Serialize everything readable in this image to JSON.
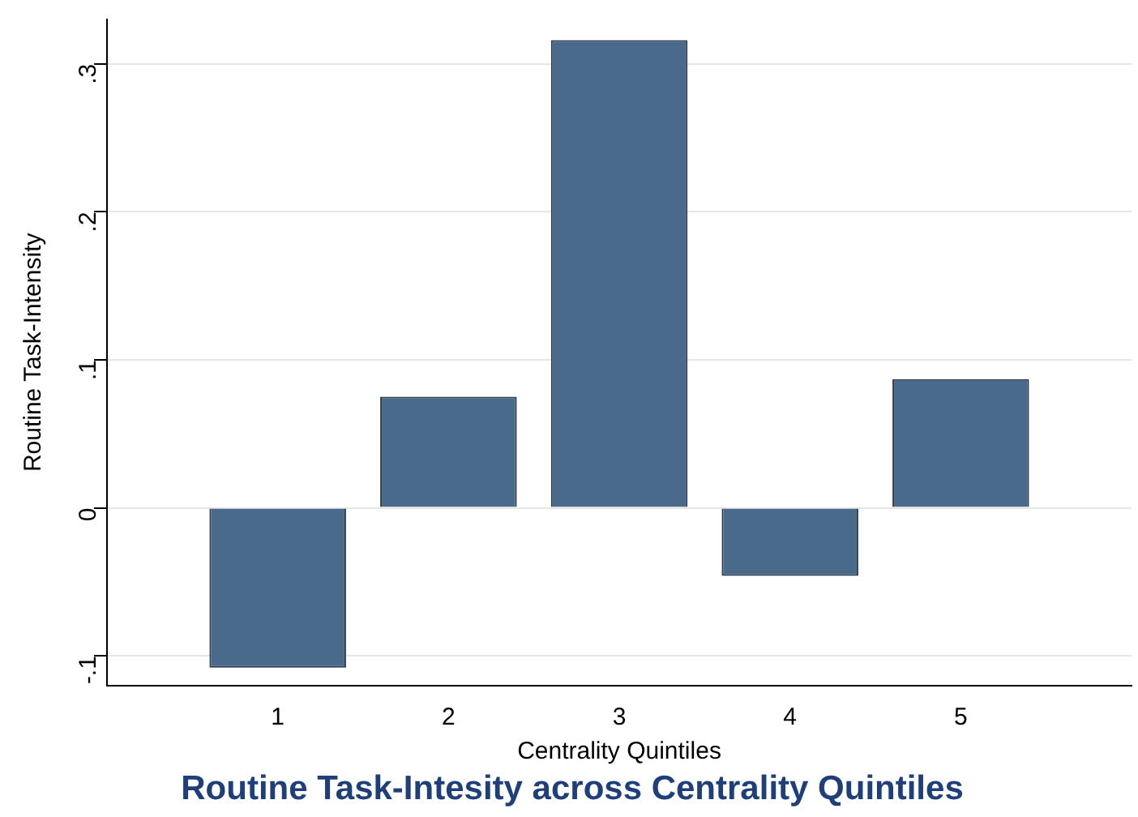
{
  "chart_data": {
    "type": "bar",
    "title": "Routine Task-Intesity across Centrality Quintiles",
    "xlabel": "Centrality Quintiles",
    "ylabel": "Routine Task-Intensity",
    "x": [
      1,
      2,
      3,
      4,
      5
    ],
    "values": [
      -0.108,
      0.075,
      0.316,
      -0.046,
      0.087
    ],
    "color": "#4a6a8c",
    "xlim": [
      0,
      6
    ],
    "xticks": [
      1,
      2,
      3,
      4,
      5
    ],
    "ylim": [
      -0.12,
      0.33
    ],
    "yticks": [
      {
        "value": -0.1,
        "label": "-.1"
      },
      {
        "value": 0,
        "label": "0"
      },
      {
        "value": 0.1,
        "label": ".1"
      },
      {
        "value": 0.2,
        "label": ".2"
      },
      {
        "value": 0.3,
        "label": ".3"
      }
    ],
    "grid": "y",
    "legend": false
  }
}
